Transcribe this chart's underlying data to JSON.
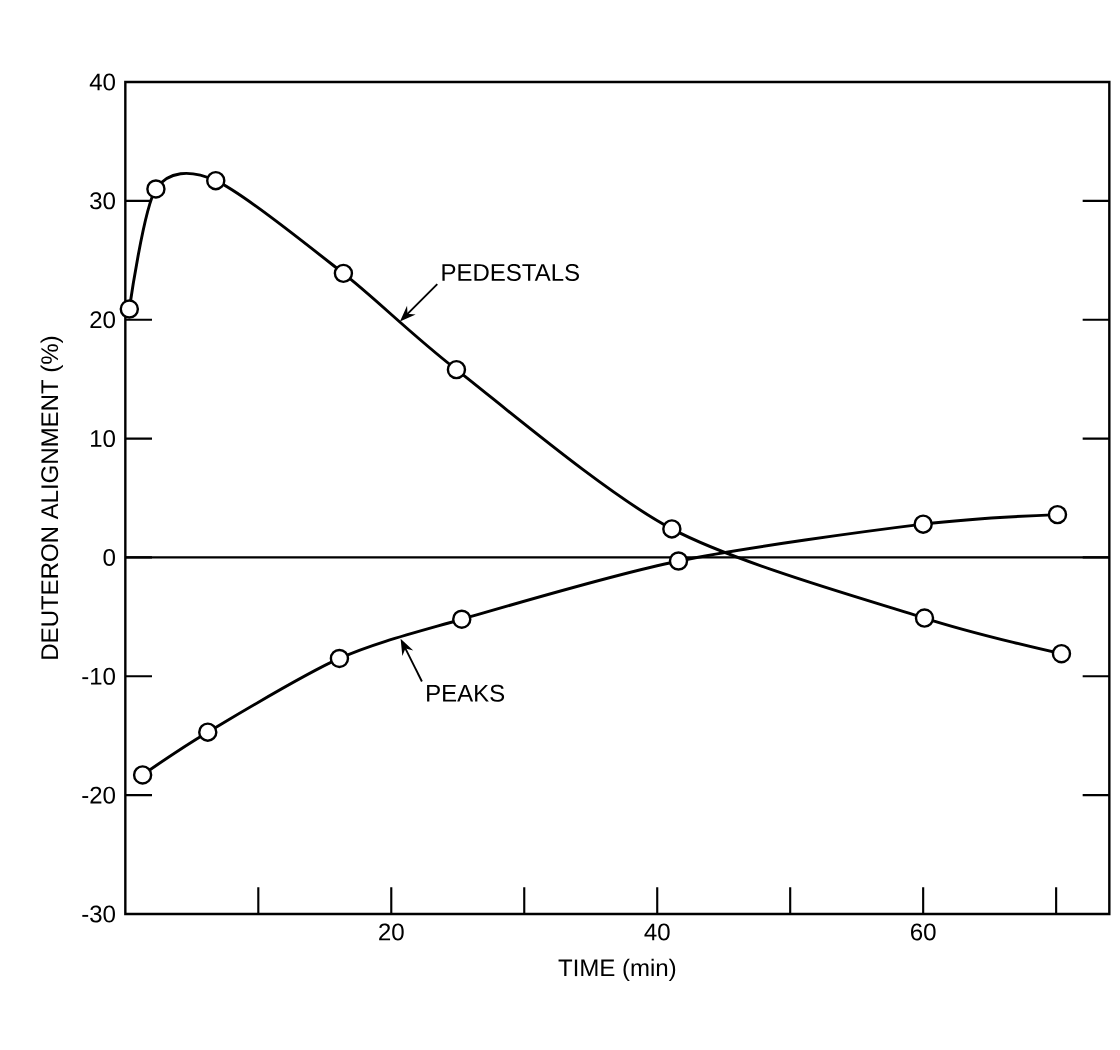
{
  "chart_data": {
    "type": "line",
    "xlabel": "TIME (min)",
    "ylabel": "DEUTERON ALIGNMENT (%)",
    "xlim": [
      0,
      74
    ],
    "ylim": [
      -30,
      40
    ],
    "xticks": [
      {
        "value": 10,
        "label": null
      },
      20,
      {
        "value": 30,
        "label": null
      },
      40,
      {
        "value": 50,
        "label": null
      },
      60,
      {
        "value": 70,
        "label": null
      }
    ],
    "yticks": [
      -30,
      -20,
      -10,
      0,
      10,
      20,
      30,
      40
    ],
    "series": [
      {
        "name": "PEDESTALS",
        "color": "#000000",
        "x": [
          0.3,
          2.3,
          6.8,
          16.4,
          24.9,
          41.1,
          60.1,
          70.4
        ],
        "values": [
          20.9,
          31.0,
          31.7,
          23.9,
          15.8,
          2.4,
          -5.1,
          -8.1
        ]
      },
      {
        "name": "PEAKS",
        "color": "#000000",
        "x": [
          1.3,
          6.2,
          16.1,
          25.3,
          41.6,
          60.0,
          70.1
        ],
        "values": [
          -18.3,
          -14.7,
          -8.5,
          -5.2,
          -0.3,
          2.8,
          3.6
        ]
      }
    ],
    "ref_lines": [
      {
        "axis": "y",
        "value": 0,
        "color": "#000000"
      }
    ],
    "marker": "circle",
    "line_style": "solid",
    "grid": false
  }
}
